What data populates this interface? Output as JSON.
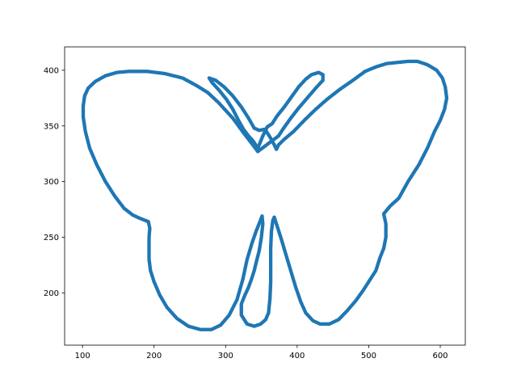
{
  "chart_data": {
    "type": "scatter",
    "title": "",
    "xlabel": "",
    "ylabel": "",
    "xlim": [
      75,
      635
    ],
    "ylim": [
      153,
      421
    ],
    "x_ticks": [
      100,
      200,
      300,
      400,
      500,
      600
    ],
    "y_ticks": [
      200,
      250,
      300,
      350,
      400
    ],
    "x_tick_labels": [
      "100",
      "200",
      "300",
      "400",
      "500",
      "600"
    ],
    "y_tick_labels": [
      "200",
      "250",
      "300",
      "350",
      "400"
    ],
    "grid": false,
    "legend": "none",
    "colors": {
      "series": "#1f77b4",
      "axes": "#000000",
      "background": "#ffffff"
    },
    "series": [
      {
        "points": [
          [
            345,
            327
          ],
          [
            338,
            333
          ],
          [
            332,
            338
          ],
          [
            326,
            343
          ],
          [
            318,
            350
          ],
          [
            310,
            357
          ],
          [
            300,
            364
          ],
          [
            290,
            371
          ],
          [
            275,
            380
          ],
          [
            260,
            386
          ],
          [
            240,
            393
          ],
          [
            215,
            397
          ],
          [
            190,
            399
          ],
          [
            165,
            399
          ],
          [
            148,
            398
          ],
          [
            132,
            395
          ],
          [
            118,
            390
          ],
          [
            108,
            384
          ],
          [
            103,
            377
          ],
          [
            101,
            368
          ],
          [
            101,
            358
          ],
          [
            104,
            345
          ],
          [
            110,
            330
          ],
          [
            120,
            315
          ],
          [
            132,
            300
          ],
          [
            145,
            287
          ],
          [
            158,
            276
          ],
          [
            170,
            270
          ],
          [
            180,
            267
          ],
          [
            192,
            264
          ],
          [
            194,
            258
          ],
          [
            193,
            250
          ],
          [
            193,
            240
          ],
          [
            193,
            230
          ],
          [
            195,
            220
          ],
          [
            200,
            210
          ],
          [
            208,
            198
          ],
          [
            218,
            187
          ],
          [
            232,
            177
          ],
          [
            248,
            170
          ],
          [
            265,
            167
          ],
          [
            280,
            167
          ],
          [
            293,
            171
          ],
          [
            305,
            180
          ],
          [
            316,
            194
          ],
          [
            324,
            212
          ],
          [
            330,
            230
          ],
          [
            337,
            245
          ],
          [
            343,
            256
          ],
          [
            348,
            264
          ],
          [
            351,
            269
          ],
          [
            352,
            262
          ],
          [
            350,
            250
          ],
          [
            347,
            238
          ],
          [
            343,
            228
          ],
          [
            340,
            220
          ],
          [
            336,
            212
          ],
          [
            332,
            205
          ],
          [
            327,
            198
          ],
          [
            322,
            190
          ],
          [
            322,
            180
          ],
          [
            330,
            172
          ],
          [
            340,
            170
          ],
          [
            349,
            172
          ],
          [
            356,
            176
          ],
          [
            360,
            182
          ],
          [
            362,
            195
          ],
          [
            363,
            210
          ],
          [
            363,
            225
          ],
          [
            363,
            240
          ],
          [
            364,
            255
          ],
          [
            366,
            265
          ],
          [
            368,
            268
          ],
          [
            372,
            260
          ],
          [
            378,
            248
          ],
          [
            384,
            235
          ],
          [
            391,
            220
          ],
          [
            398,
            205
          ],
          [
            405,
            192
          ],
          [
            412,
            182
          ],
          [
            422,
            175
          ],
          [
            432,
            172
          ],
          [
            445,
            172
          ],
          [
            458,
            176
          ],
          [
            470,
            184
          ],
          [
            482,
            193
          ],
          [
            492,
            202
          ],
          [
            502,
            212
          ],
          [
            510,
            220
          ],
          [
            516,
            232
          ],
          [
            521,
            240
          ],
          [
            524,
            250
          ],
          [
            524,
            262
          ],
          [
            521,
            271
          ],
          [
            530,
            278
          ],
          [
            542,
            285
          ],
          [
            555,
            300
          ],
          [
            570,
            315
          ],
          [
            582,
            330
          ],
          [
            592,
            345
          ],
          [
            600,
            355
          ],
          [
            606,
            365
          ],
          [
            609,
            375
          ],
          [
            607,
            385
          ],
          [
            603,
            393
          ],
          [
            595,
            400
          ],
          [
            582,
            405
          ],
          [
            568,
            408
          ],
          [
            555,
            408
          ],
          [
            540,
            407
          ],
          [
            525,
            406
          ],
          [
            510,
            403
          ],
          [
            495,
            399
          ],
          [
            478,
            391
          ],
          [
            460,
            383
          ],
          [
            442,
            374
          ],
          [
            426,
            365
          ],
          [
            410,
            355
          ],
          [
            395,
            345
          ],
          [
            382,
            338
          ],
          [
            374,
            333
          ],
          [
            371,
            329
          ],
          [
            368,
            333
          ],
          [
            362,
            340
          ],
          [
            355,
            347
          ],
          [
            347,
            346
          ],
          [
            340,
            348
          ],
          [
            332,
            357
          ],
          [
            322,
            367
          ],
          [
            310,
            377
          ],
          [
            298,
            385
          ],
          [
            286,
            391
          ],
          [
            277,
            393
          ],
          [
            281,
            389
          ],
          [
            291,
            382
          ],
          [
            301,
            374
          ],
          [
            310,
            365
          ],
          [
            318,
            355
          ],
          [
            325,
            347
          ],
          [
            332,
            341
          ],
          [
            339,
            336
          ],
          [
            345,
            330
          ],
          [
            352,
            341
          ],
          [
            358,
            349
          ],
          [
            365,
            352
          ],
          [
            372,
            359
          ],
          [
            382,
            367
          ],
          [
            392,
            376
          ],
          [
            402,
            385
          ],
          [
            412,
            392
          ],
          [
            420,
            396
          ],
          [
            430,
            398
          ],
          [
            436,
            396
          ],
          [
            436,
            391
          ],
          [
            426,
            384
          ],
          [
            414,
            375
          ],
          [
            402,
            366
          ],
          [
            390,
            356
          ],
          [
            380,
            347
          ],
          [
            374,
            341
          ]
        ]
      }
    ]
  }
}
